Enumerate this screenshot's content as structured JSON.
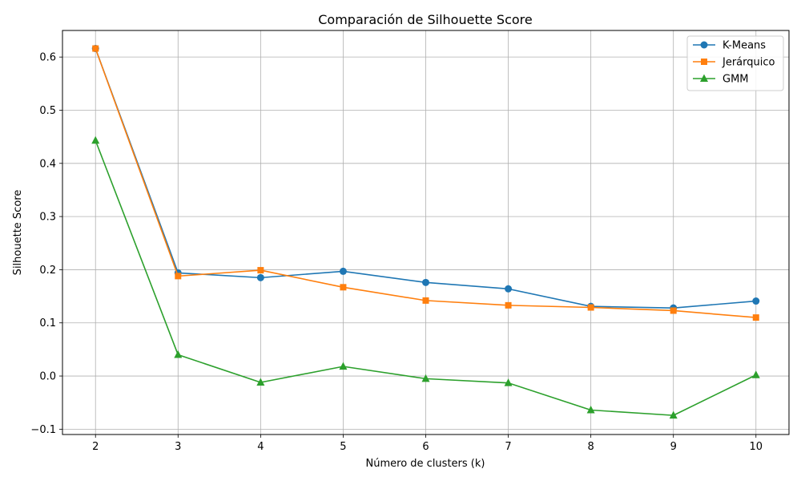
{
  "chart_data": {
    "type": "line",
    "title": "Comparación de Silhouette Score",
    "xlabel": "Número de clusters (k)",
    "ylabel": "Silhouette Score",
    "x": [
      2,
      3,
      4,
      5,
      6,
      7,
      8,
      9,
      10
    ],
    "xlim": [
      1.6,
      10.4
    ],
    "ylim": [
      -0.11,
      0.65
    ],
    "xticks": [
      2,
      3,
      4,
      5,
      6,
      7,
      8,
      9,
      10
    ],
    "yticks": [
      -0.1,
      0.0,
      0.1,
      0.2,
      0.3,
      0.4,
      0.5,
      0.6
    ],
    "ytick_labels": [
      "−0.1",
      "0.0",
      "0.1",
      "0.2",
      "0.3",
      "0.4",
      "0.5",
      "0.6"
    ],
    "grid": true,
    "legend_position": "top-right",
    "series": [
      {
        "name": "K-Means",
        "color": "#1f77b4",
        "marker": "circle",
        "values": [
          0.616,
          0.194,
          0.185,
          0.197,
          0.176,
          0.164,
          0.131,
          0.128,
          0.141
        ]
      },
      {
        "name": "Jerárquico",
        "color": "#ff7f0e",
        "marker": "square",
        "values": [
          0.616,
          0.188,
          0.199,
          0.167,
          0.142,
          0.133,
          0.129,
          0.123,
          0.11
        ]
      },
      {
        "name": "GMM",
        "color": "#2ca02c",
        "marker": "triangle",
        "values": [
          0.443,
          0.04,
          -0.012,
          0.018,
          -0.005,
          -0.013,
          -0.064,
          -0.074,
          0.002
        ]
      }
    ]
  }
}
